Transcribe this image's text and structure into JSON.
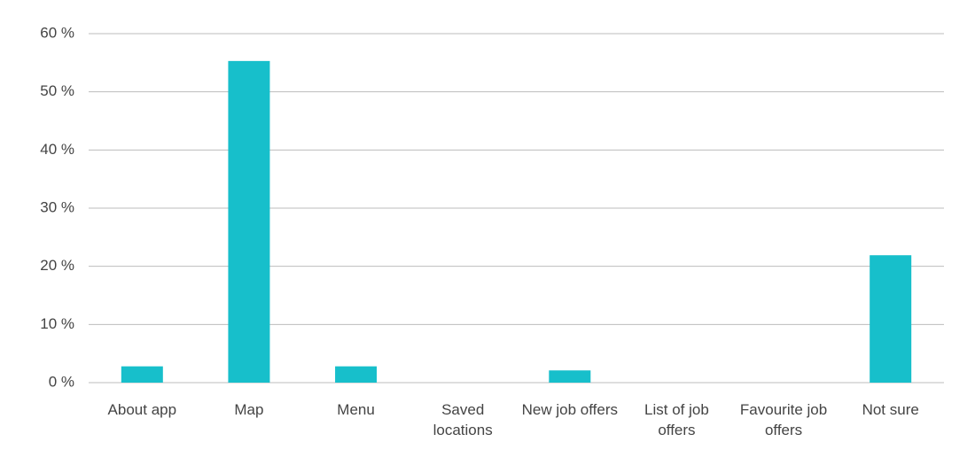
{
  "chart_data": {
    "type": "bar",
    "categories": [
      "About app",
      "Map",
      "Menu",
      "Saved locations",
      "New job offers",
      "List of job offers",
      "Favourite job offers",
      "Not sure"
    ],
    "values": [
      2.8,
      55.3,
      2.8,
      0,
      2.1,
      0,
      0,
      21.9
    ],
    "color": "#17bfcb",
    "ylim": [
      0,
      60
    ],
    "yticks": [
      {
        "value": 0,
        "label": "0 %"
      },
      {
        "value": 10,
        "label": "10 %"
      },
      {
        "value": 20,
        "label": "20 %"
      },
      {
        "value": 30,
        "label": "30 %"
      },
      {
        "value": 40,
        "label": "40 %"
      },
      {
        "value": 50,
        "label": "50 %"
      },
      {
        "value": 60,
        "label": "60 %"
      }
    ],
    "grid": true
  }
}
